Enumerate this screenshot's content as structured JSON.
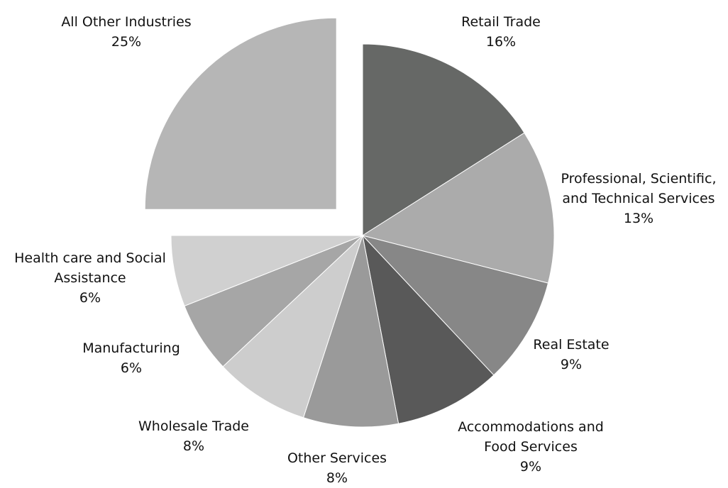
{
  "chart_data": {
    "type": "pie",
    "categories": [
      "Retail Trade",
      "Professional, Scientific, and Technical Services",
      "Real Estate",
      "Accommodations and Food Services",
      "Other Services",
      "Wholesale Trade",
      "Manufacturing",
      "Health care and Social Assistance",
      "All Other Industries"
    ],
    "values": [
      16,
      13,
      9,
      9,
      8,
      8,
      6,
      6,
      25
    ],
    "value_labels": [
      "16%",
      "13%",
      "9%",
      "9%",
      "8%",
      "8%",
      "6%",
      "6%",
      "25%"
    ],
    "colors": [
      "#666866",
      "#ababab",
      "#878787",
      "#595959",
      "#9a9a9a",
      "#cdcdcd",
      "#a6a6a6",
      "#d0d0d0",
      "#b6b6b6"
    ],
    "explode": [
      false,
      false,
      false,
      false,
      false,
      false,
      false,
      false,
      true
    ]
  }
}
